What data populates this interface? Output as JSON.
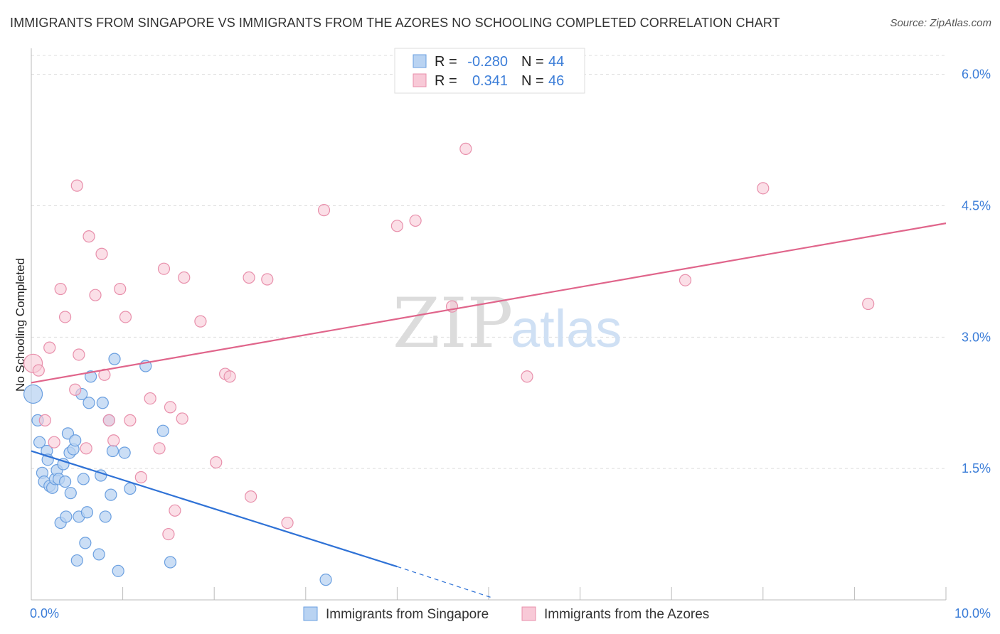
{
  "title": "IMMIGRANTS FROM SINGAPORE VS IMMIGRANTS FROM THE AZORES NO SCHOOLING COMPLETED CORRELATION CHART",
  "source": "Source: ZipAtlas.com",
  "watermark": {
    "zip": "ZIP",
    "atlas": "atlas"
  },
  "colors": {
    "singapore_fill": "#b9d3f2",
    "singapore_stroke": "#6a9fe0",
    "singapore_line": "#2f72d6",
    "azores_fill": "#f8c9d7",
    "azores_stroke": "#e88fab",
    "azores_line": "#e0658b",
    "tick_label": "#3b7dd8",
    "grid": "#dddddd"
  },
  "stats": {
    "singapore": {
      "r_label": "R =",
      "r_value": "-0.280",
      "n_label": "N =",
      "n_value": "44"
    },
    "azores": {
      "r_label": "R =",
      "r_value": "0.341",
      "n_label": "N =",
      "n_value": "46"
    }
  },
  "chart_data": {
    "type": "scatter",
    "title": "IMMIGRANTS FROM SINGAPORE VS IMMIGRANTS FROM THE AZORES NO SCHOOLING COMPLETED CORRELATION CHART",
    "xlabel": "",
    "ylabel": "No Schooling Completed",
    "xlim": [
      0,
      10
    ],
    "ylim": [
      0,
      6.2
    ],
    "x_tick_labels": [
      "0.0%",
      "10.0%"
    ],
    "y_ticks": [
      1.5,
      3.0,
      4.5,
      6.0
    ],
    "y_tick_labels": [
      "1.5%",
      "3.0%",
      "4.5%",
      "6.0%"
    ],
    "legend": [
      "Immigrants from Singapore",
      "Immigrants from the Azores"
    ],
    "series": [
      {
        "name": "Immigrants from Singapore",
        "points": [
          [
            0.02,
            2.35
          ],
          [
            0.07,
            2.05
          ],
          [
            0.09,
            1.8
          ],
          [
            0.12,
            1.45
          ],
          [
            0.14,
            1.35
          ],
          [
            0.17,
            1.7
          ],
          [
            0.18,
            1.6
          ],
          [
            0.2,
            1.3
          ],
          [
            0.23,
            1.28
          ],
          [
            0.26,
            1.38
          ],
          [
            0.28,
            1.48
          ],
          [
            0.3,
            1.38
          ],
          [
            0.32,
            0.88
          ],
          [
            0.35,
            1.55
          ],
          [
            0.37,
            1.35
          ],
          [
            0.38,
            0.95
          ],
          [
            0.4,
            1.9
          ],
          [
            0.42,
            1.68
          ],
          [
            0.43,
            1.22
          ],
          [
            0.46,
            1.72
          ],
          [
            0.48,
            1.82
          ],
          [
            0.5,
            0.45
          ],
          [
            0.52,
            0.95
          ],
          [
            0.55,
            2.35
          ],
          [
            0.57,
            1.38
          ],
          [
            0.59,
            0.65
          ],
          [
            0.61,
            1.0
          ],
          [
            0.63,
            2.25
          ],
          [
            0.65,
            2.55
          ],
          [
            0.74,
            0.52
          ],
          [
            0.76,
            1.42
          ],
          [
            0.78,
            2.25
          ],
          [
            0.81,
            0.95
          ],
          [
            0.85,
            2.05
          ],
          [
            0.87,
            1.2
          ],
          [
            0.89,
            1.7
          ],
          [
            0.91,
            2.75
          ],
          [
            0.95,
            0.33
          ],
          [
            1.02,
            1.68
          ],
          [
            1.08,
            1.27
          ],
          [
            1.25,
            2.67
          ],
          [
            1.44,
            1.93
          ],
          [
            1.52,
            0.43
          ],
          [
            3.22,
            0.23
          ]
        ],
        "trend": {
          "x": [
            0.0,
            4.0
          ],
          "y": [
            1.7,
            0.38
          ]
        },
        "trend_extension": {
          "x": [
            4.0,
            5.05
          ],
          "y": [
            0.38,
            0.02
          ]
        }
      },
      {
        "name": "Immigrants from the Azores",
        "points": [
          [
            0.02,
            2.7
          ],
          [
            0.08,
            2.62
          ],
          [
            0.15,
            2.05
          ],
          [
            0.2,
            2.88
          ],
          [
            0.25,
            1.8
          ],
          [
            0.32,
            3.55
          ],
          [
            0.37,
            3.23
          ],
          [
            0.48,
            2.4
          ],
          [
            0.5,
            4.73
          ],
          [
            0.52,
            2.8
          ],
          [
            0.6,
            1.73
          ],
          [
            0.63,
            4.15
          ],
          [
            0.7,
            3.48
          ],
          [
            0.77,
            3.95
          ],
          [
            0.8,
            2.57
          ],
          [
            0.85,
            2.05
          ],
          [
            0.9,
            1.82
          ],
          [
            0.97,
            3.55
          ],
          [
            1.03,
            3.23
          ],
          [
            1.08,
            2.05
          ],
          [
            1.2,
            1.4
          ],
          [
            1.3,
            2.3
          ],
          [
            1.4,
            1.73
          ],
          [
            1.45,
            3.78
          ],
          [
            1.5,
            0.75
          ],
          [
            1.52,
            2.2
          ],
          [
            1.57,
            1.02
          ],
          [
            1.65,
            2.07
          ],
          [
            1.67,
            3.68
          ],
          [
            1.85,
            3.18
          ],
          [
            2.02,
            1.57
          ],
          [
            2.12,
            2.58
          ],
          [
            2.17,
            2.55
          ],
          [
            2.38,
            3.68
          ],
          [
            2.4,
            1.18
          ],
          [
            2.58,
            3.66
          ],
          [
            2.8,
            0.88
          ],
          [
            3.2,
            4.45
          ],
          [
            4.0,
            4.27
          ],
          [
            4.2,
            4.33
          ],
          [
            4.6,
            3.35
          ],
          [
            4.75,
            5.15
          ],
          [
            5.42,
            2.55
          ],
          [
            7.15,
            3.65
          ],
          [
            8.0,
            4.7
          ],
          [
            9.15,
            3.38
          ]
        ],
        "trend": {
          "x": [
            0.0,
            10.0
          ],
          "y": [
            2.48,
            4.3
          ]
        }
      }
    ]
  }
}
